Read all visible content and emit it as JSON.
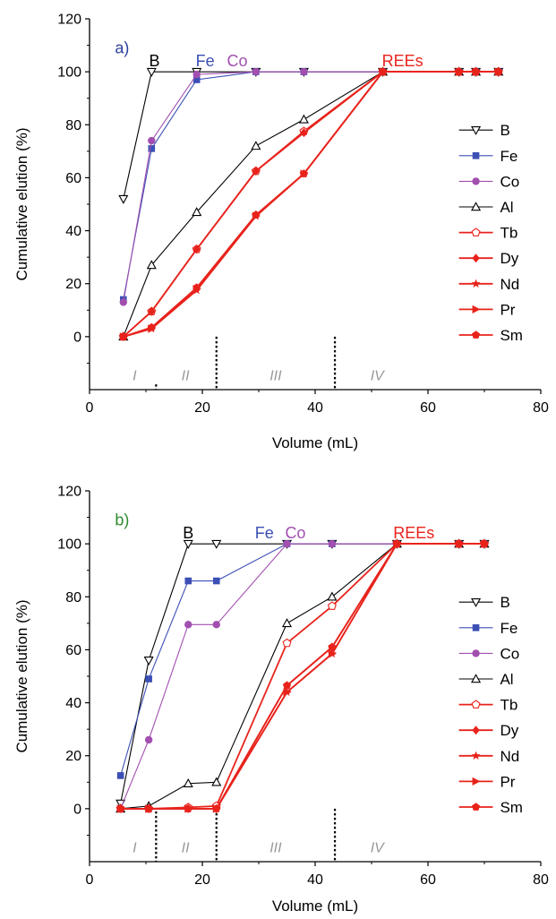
{
  "figure": {
    "title": ""
  },
  "chart_data": [
    {
      "type": "line",
      "panel_label": "a)",
      "panel_label_color": "#2b3f9a",
      "xlabel": "Volume (mL)",
      "ylabel": "Cumulative elution (%)",
      "xlim": [
        0,
        80
      ],
      "ylim": [
        -20,
        120
      ],
      "x_ticks": [
        0,
        20,
        40,
        60,
        80
      ],
      "y_ticks": [
        0,
        20,
        40,
        60,
        80,
        100,
        120
      ],
      "grid": false,
      "legend": "right",
      "annotations": [
        {
          "text": "B",
          "x": 11.5,
          "y": 102,
          "color": "#000000"
        },
        {
          "text": "Fe",
          "x": 20.5,
          "y": 102,
          "color": "#3b4fb5"
        },
        {
          "text": "Co",
          "x": 26.2,
          "y": 102,
          "color": "#a24fb0"
        },
        {
          "text": "REEs",
          "x": 55.5,
          "y": 102,
          "color": "#e8231c"
        }
      ],
      "stage_labels": [
        {
          "text": "I",
          "x": 8
        },
        {
          "text": "II",
          "x": 17
        },
        {
          "text": "III",
          "x": 33
        },
        {
          "text": "IV",
          "x": 51
        }
      ],
      "dividers": [
        {
          "x": 11.8,
          "y_top": -18,
          "y_bot": -20
        },
        {
          "x": 22.5,
          "y_top": 0,
          "y_bot": -20
        },
        {
          "x": 43.5,
          "y_top": 0,
          "y_bot": -20
        }
      ],
      "series": [
        {
          "name": "B",
          "color": "#000000",
          "marker": "triangle-down-open",
          "x": [
            6,
            11,
            19,
            29.5,
            38,
            52,
            65.5,
            68.5,
            72.5
          ],
          "y": [
            52,
            100,
            100,
            100,
            100,
            100,
            100,
            100,
            100
          ]
        },
        {
          "name": "Fe",
          "color": "#3b4fb5",
          "marker": "square-filled",
          "x": [
            6,
            11,
            19,
            29.5,
            38,
            52,
            65.5,
            68.5,
            72.5
          ],
          "y": [
            14,
            71,
            97,
            100,
            100,
            100,
            100,
            100,
            100
          ]
        },
        {
          "name": "Co",
          "color": "#a24fb0",
          "marker": "circle-filled",
          "x": [
            6,
            11,
            19,
            29.5,
            38,
            52,
            65.5,
            68.5,
            72.5
          ],
          "y": [
            13,
            74,
            99,
            100,
            100,
            100,
            100,
            100,
            100
          ]
        },
        {
          "name": "Al",
          "color": "#000000",
          "marker": "triangle-up-open",
          "x": [
            6,
            11,
            19,
            29.5,
            38,
            52,
            65.5,
            68.5,
            72.5
          ],
          "y": [
            0,
            27,
            47,
            72,
            82,
            100,
            100,
            100,
            100
          ]
        },
        {
          "name": "Tb",
          "color": "#e8231c",
          "marker": "pentagon-open",
          "x": [
            6,
            11,
            19,
            29.5,
            38,
            52,
            65.5,
            68.5,
            72.5
          ],
          "y": [
            0,
            9.5,
            33,
            62.5,
            77.5,
            100,
            100,
            100,
            100
          ]
        },
        {
          "name": "Dy",
          "color": "#e8231c",
          "marker": "diamond-filled",
          "x": [
            6,
            11,
            19,
            29.5,
            38,
            52,
            65.5,
            68.5,
            72.5
          ],
          "y": [
            0,
            9.5,
            33,
            62.5,
            77,
            100,
            100,
            100,
            100
          ]
        },
        {
          "name": "Nd",
          "color": "#e8231c",
          "marker": "star-filled",
          "x": [
            6,
            11,
            19,
            29.5,
            38,
            52,
            65.5,
            68.5,
            72.5
          ],
          "y": [
            0,
            3,
            17.5,
            45.5,
            61.5,
            100,
            100,
            100,
            100
          ]
        },
        {
          "name": "Pr",
          "color": "#e8231c",
          "marker": "triangle-right-filled",
          "x": [
            6,
            11,
            19,
            29.5,
            38,
            52,
            65.5,
            68.5,
            72.5
          ],
          "y": [
            0,
            3,
            18,
            45.5,
            61.5,
            100,
            100,
            100,
            100
          ]
        },
        {
          "name": "Sm",
          "color": "#e8231c",
          "marker": "pentagon-filled",
          "x": [
            6,
            11,
            19,
            29.5,
            38,
            52,
            65.5,
            68.5,
            72.5
          ],
          "y": [
            0,
            3.5,
            18.5,
            46,
            61.5,
            100,
            100,
            100,
            100
          ]
        }
      ]
    },
    {
      "type": "line",
      "panel_label": "b)",
      "panel_label_color": "#2e8b2e",
      "xlabel": "Volume (mL)",
      "ylabel": "Cumulative elution (%)",
      "xlim": [
        0,
        80
      ],
      "ylim": [
        -20,
        120
      ],
      "x_ticks": [
        0,
        20,
        40,
        60,
        80
      ],
      "y_ticks": [
        0,
        20,
        40,
        60,
        80,
        100,
        120
      ],
      "grid": false,
      "legend": "right",
      "annotations": [
        {
          "text": "B",
          "x": 17.5,
          "y": 102,
          "color": "#000000"
        },
        {
          "text": "Fe",
          "x": 31,
          "y": 102,
          "color": "#3b4fb5"
        },
        {
          "text": "Co",
          "x": 36.5,
          "y": 102,
          "color": "#a24fb0"
        },
        {
          "text": "REEs",
          "x": 57.5,
          "y": 102,
          "color": "#e8231c"
        }
      ],
      "stage_labels": [
        {
          "text": "I",
          "x": 8
        },
        {
          "text": "II",
          "x": 17
        },
        {
          "text": "III",
          "x": 33
        },
        {
          "text": "IV",
          "x": 51
        }
      ],
      "dividers": [
        {
          "x": 11.8,
          "y_top": -1,
          "y_bot": -20
        },
        {
          "x": 22.5,
          "y_top": 0,
          "y_bot": -20
        },
        {
          "x": 43.5,
          "y_top": 0,
          "y_bot": -20
        }
      ],
      "series": [
        {
          "name": "B",
          "color": "#000000",
          "marker": "triangle-down-open",
          "x": [
            5.5,
            10.5,
            17.5,
            22.5,
            35,
            43,
            54.5,
            65.5,
            70
          ],
          "y": [
            2,
            56,
            100,
            100,
            100,
            100,
            100,
            100,
            100
          ]
        },
        {
          "name": "Fe",
          "color": "#3b4fb5",
          "marker": "square-filled",
          "x": [
            5.5,
            10.5,
            17.5,
            22.5,
            35,
            43,
            54.5,
            65.5,
            70
          ],
          "y": [
            12.5,
            49,
            86,
            86,
            100,
            100,
            100,
            100,
            100
          ]
        },
        {
          "name": "Co",
          "color": "#a24fb0",
          "marker": "circle-filled",
          "x": [
            5.5,
            10.5,
            17.5,
            22.5,
            35,
            43,
            54.5,
            65.5,
            70
          ],
          "y": [
            0,
            26,
            69.5,
            69.5,
            100,
            100,
            100,
            100,
            100
          ]
        },
        {
          "name": "Al",
          "color": "#000000",
          "marker": "triangle-up-open",
          "x": [
            5.5,
            10.5,
            17.5,
            22.5,
            35,
            43,
            54.5,
            65.5,
            70
          ],
          "y": [
            0,
            1,
            9.5,
            10,
            70,
            80,
            100,
            100,
            100
          ]
        },
        {
          "name": "Tb",
          "color": "#e8231c",
          "marker": "pentagon-open",
          "x": [
            5.5,
            10.5,
            17.5,
            22.5,
            35,
            43,
            54.5,
            65.5,
            70
          ],
          "y": [
            0,
            0,
            0.5,
            1,
            62.5,
            76.5,
            100,
            100,
            100
          ]
        },
        {
          "name": "Dy",
          "color": "#e8231c",
          "marker": "diamond-filled",
          "x": [
            5.5,
            10.5,
            17.5,
            22.5,
            35,
            43,
            54.5,
            65.5,
            70
          ],
          "y": [
            0,
            0,
            0,
            0,
            46.5,
            61,
            100,
            100,
            100
          ]
        },
        {
          "name": "Nd",
          "color": "#e8231c",
          "marker": "star-filled",
          "x": [
            5.5,
            10.5,
            17.5,
            22.5,
            35,
            43,
            54.5,
            65.5,
            70
          ],
          "y": [
            0,
            0,
            0,
            0,
            44,
            58.5,
            100,
            100,
            100
          ]
        },
        {
          "name": "Pr",
          "color": "#e8231c",
          "marker": "triangle-right-filled",
          "x": [
            5.5,
            10.5,
            17.5,
            22.5,
            35,
            43,
            54.5,
            65.5,
            70
          ],
          "y": [
            0,
            0,
            0,
            0,
            44,
            58.5,
            100,
            100,
            100
          ]
        },
        {
          "name": "Sm",
          "color": "#e8231c",
          "marker": "pentagon-filled",
          "x": [
            5.5,
            10.5,
            17.5,
            22.5,
            35,
            43,
            54.5,
            65.5,
            70
          ],
          "y": [
            0,
            0,
            0,
            0,
            46.5,
            61,
            100,
            100,
            100
          ]
        }
      ]
    }
  ]
}
